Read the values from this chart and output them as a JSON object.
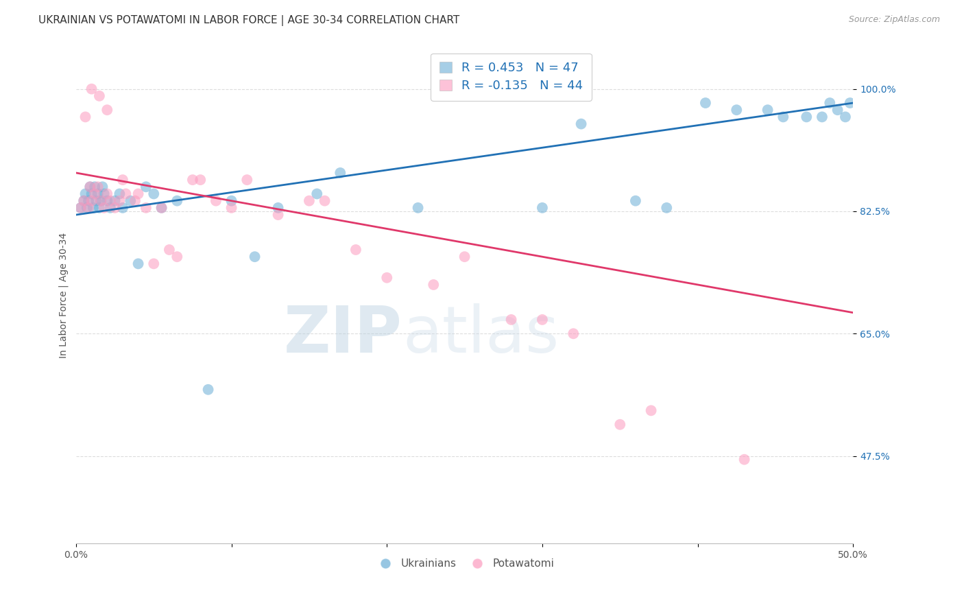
{
  "title": "UKRAINIAN VS POTAWATOMI IN LABOR FORCE | AGE 30-34 CORRELATION CHART",
  "source": "Source: ZipAtlas.com",
  "ylabel": "In Labor Force | Age 30-34",
  "xlim": [
    0.0,
    50.0
  ],
  "ylim": [
    35.0,
    106.0
  ],
  "yticks": [
    47.5,
    65.0,
    82.5,
    100.0
  ],
  "ytick_labels": [
    "47.5%",
    "65.0%",
    "82.5%",
    "100.0%"
  ],
  "grid_color": "#dddddd",
  "blue_color": "#6baed6",
  "blue_line_color": "#2171b5",
  "pink_color": "#fc9abe",
  "pink_line_color": "#e0386a",
  "legend_blue_R": 0.453,
  "legend_blue_N": 47,
  "legend_pink_R": -0.135,
  "legend_pink_N": 44,
  "ukrainians_x": [
    0.3,
    0.5,
    0.6,
    0.7,
    0.8,
    0.9,
    1.0,
    1.1,
    1.2,
    1.3,
    1.4,
    1.5,
    1.6,
    1.7,
    1.8,
    2.0,
    2.2,
    2.5,
    2.8,
    3.0,
    3.5,
    4.0,
    4.5,
    5.0,
    5.5,
    6.5,
    8.5,
    10.0,
    11.5,
    13.0,
    15.5,
    17.0,
    22.0,
    30.0,
    32.5,
    36.0,
    38.0,
    40.5,
    42.5,
    44.5,
    45.5,
    47.0,
    48.0,
    48.5,
    49.0,
    49.5,
    49.8
  ],
  "ukrainians_y": [
    83,
    84,
    85,
    83,
    84,
    86,
    85,
    83,
    86,
    84,
    85,
    83,
    84,
    86,
    85,
    84,
    83,
    84,
    85,
    83,
    84,
    75,
    86,
    85,
    83,
    84,
    57,
    84,
    76,
    83,
    85,
    88,
    83,
    83,
    95,
    84,
    83,
    98,
    97,
    97,
    96,
    96,
    96,
    98,
    97,
    96,
    98
  ],
  "potawatomi_x": [
    0.3,
    0.5,
    0.8,
    1.0,
    1.2,
    1.4,
    1.6,
    1.8,
    2.0,
    2.2,
    2.5,
    2.8,
    3.2,
    3.8,
    4.5,
    5.0,
    6.0,
    7.5,
    9.0,
    11.0,
    15.0,
    20.0,
    25.0,
    30.0,
    35.0,
    43.0,
    1.0,
    1.5,
    2.0,
    3.0,
    4.0,
    5.5,
    6.5,
    8.0,
    10.0,
    13.0,
    18.0,
    23.0,
    28.0,
    32.0,
    37.0,
    0.6,
    0.9,
    16.0
  ],
  "potawatomi_y": [
    83,
    84,
    83,
    84,
    85,
    86,
    84,
    83,
    85,
    84,
    83,
    84,
    85,
    84,
    83,
    75,
    77,
    87,
    84,
    87,
    84,
    73,
    76,
    67,
    52,
    47,
    100,
    99,
    97,
    87,
    85,
    83,
    76,
    87,
    83,
    82,
    77,
    72,
    67,
    65,
    54,
    96,
    86,
    84
  ],
  "watermark_zip": "ZIP",
  "watermark_atlas": "atlas",
  "background_color": "#ffffff",
  "title_fontsize": 11,
  "axis_label_fontsize": 10,
  "tick_fontsize": 10,
  "legend_fontsize": 13
}
